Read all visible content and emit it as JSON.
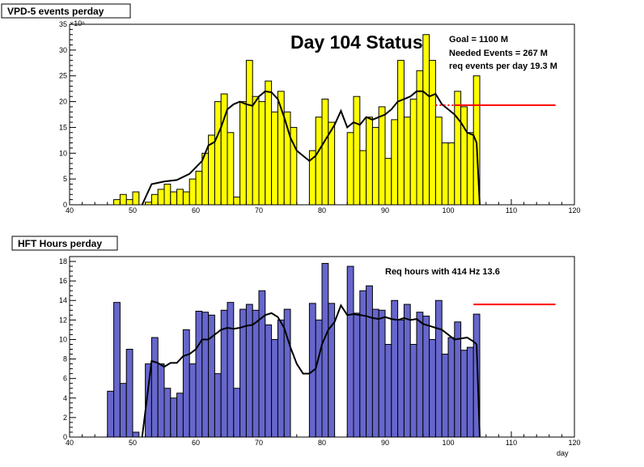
{
  "colors": {
    "top_fill": "#ffff00",
    "bottom_fill": "#6666cc",
    "bar_outline": "#000000",
    "goal_line": "#ff0000",
    "smooth_line": "#000000"
  },
  "chart_data": [
    {
      "type": "bar",
      "title": "VPD-5 events perday",
      "headline": "Day 104 Status",
      "multiplier": "×10⁶",
      "xlabel": "",
      "ylabel": "",
      "xlim": [
        40,
        120
      ],
      "ylim": [
        0,
        35
      ],
      "x_ticks": [
        40,
        50,
        60,
        70,
        80,
        90,
        100,
        110,
        120
      ],
      "y_ticks": [
        0,
        5,
        10,
        15,
        20,
        25,
        30,
        35
      ],
      "grid": false,
      "annotations": [
        "Goal =  1100 M",
        "Needed Events =   267 M",
        "req events per day 19.3 M"
      ],
      "x": [
        46,
        47,
        48,
        49,
        50,
        51,
        52,
        53,
        54,
        55,
        56,
        57,
        58,
        59,
        60,
        61,
        62,
        63,
        64,
        65,
        66,
        67,
        68,
        69,
        70,
        71,
        72,
        73,
        74,
        75,
        76,
        77,
        78,
        79,
        80,
        81,
        82,
        83,
        84,
        85,
        86,
        87,
        88,
        89,
        90,
        91,
        92,
        93,
        94,
        95,
        96,
        97,
        98,
        99,
        100,
        101,
        102,
        103,
        104,
        105
      ],
      "values": [
        0,
        1,
        2,
        1,
        2.5,
        0,
        0.5,
        2,
        3,
        4,
        2.5,
        3,
        2.5,
        5,
        6.5,
        10,
        13.5,
        20,
        21.5,
        14,
        1.5,
        20,
        28,
        21,
        20,
        24,
        18,
        22,
        18,
        15,
        0,
        0,
        10.5,
        17,
        20.5,
        16,
        0,
        0,
        14,
        21,
        10.5,
        17,
        15,
        19,
        9,
        16.5,
        28,
        17,
        20.5,
        26,
        33,
        28,
        17,
        12,
        12,
        22,
        19,
        14,
        25,
        0
      ],
      "smooth": {
        "x": [
          51.5,
          53,
          55,
          57,
          59,
          61,
          62,
          63,
          64,
          65,
          66,
          67,
          68,
          69,
          70,
          71,
          72,
          73,
          74,
          75,
          76,
          77,
          78,
          79,
          80,
          81,
          82,
          83,
          84,
          85,
          86,
          87,
          88,
          89,
          90,
          91,
          92,
          93,
          94,
          95,
          96,
          97,
          98,
          99,
          100,
          101,
          102,
          103,
          104,
          104.5,
          105
        ],
        "y": [
          0,
          4,
          4.5,
          4.8,
          6,
          8.5,
          11.5,
          12.2,
          15,
          18.5,
          19.5,
          20,
          19.5,
          19.2,
          21,
          22,
          21.8,
          20.5,
          17,
          13,
          10.5,
          9.5,
          8.5,
          9.5,
          11.5,
          13.5,
          15.5,
          18.2,
          15,
          16,
          15.5,
          17,
          16.5,
          17,
          17.5,
          18.5,
          20,
          20.5,
          21,
          22,
          22,
          21,
          21.5,
          19.5,
          18.5,
          17.5,
          16,
          14,
          13.5,
          12,
          0
        ]
      },
      "goal": {
        "x": [
          98,
          117
        ],
        "y": 19.3
      }
    },
    {
      "type": "bar",
      "title": "HFT Hours perday",
      "xlabel": "day",
      "ylabel": "",
      "xlim": [
        40,
        120
      ],
      "ylim": [
        0,
        18.5
      ],
      "x_ticks": [
        40,
        50,
        60,
        70,
        80,
        90,
        100,
        110,
        120
      ],
      "y_ticks": [
        0,
        2,
        4,
        6,
        8,
        10,
        12,
        14,
        16,
        18
      ],
      "grid": false,
      "annotations": [
        "Req hours with  414 Hz 13.6"
      ],
      "x": [
        46,
        47,
        48,
        49,
        50,
        51,
        52,
        53,
        54,
        55,
        56,
        57,
        58,
        59,
        60,
        61,
        62,
        63,
        64,
        65,
        66,
        67,
        68,
        69,
        70,
        71,
        72,
        73,
        74,
        75,
        76,
        77,
        78,
        79,
        80,
        81,
        82,
        83,
        84,
        85,
        86,
        87,
        88,
        89,
        90,
        91,
        92,
        93,
        94,
        95,
        96,
        97,
        98,
        99,
        100,
        101,
        102,
        103,
        104,
        105
      ],
      "values": [
        4.7,
        13.8,
        5.5,
        9,
        0.5,
        0,
        7.5,
        10.2,
        7.5,
        5,
        4,
        4.5,
        11,
        7.5,
        12.9,
        12.8,
        12.5,
        6.5,
        13,
        13.8,
        5,
        13.1,
        13.6,
        13,
        15,
        11.5,
        10,
        12,
        13.1,
        0,
        0,
        0,
        13.7,
        12,
        17.8,
        13.7,
        0,
        0,
        17.5,
        12.7,
        15,
        15.5,
        13.1,
        13,
        9.5,
        14,
        12,
        13.6,
        9.5,
        12.8,
        12.4,
        10,
        14,
        8.5,
        10.2,
        11.8,
        8.9,
        9.2,
        12.6,
        0
      ],
      "smooth": {
        "x": [
          51.5,
          53,
          54,
          55,
          56,
          57,
          58,
          59,
          60,
          61,
          62,
          63,
          64,
          65,
          66,
          67,
          68,
          69,
          70,
          71,
          72,
          73,
          74,
          75,
          76,
          77,
          78,
          79,
          80,
          81,
          82,
          83,
          84,
          85,
          86,
          87,
          88,
          89,
          90,
          91,
          92,
          93,
          94,
          95,
          96,
          97,
          98,
          99,
          100,
          101,
          102,
          103,
          104,
          104.5,
          105
        ],
        "y": [
          0,
          7.8,
          7.6,
          7.2,
          7.6,
          7.6,
          8.3,
          8.5,
          9,
          10,
          10,
          10.5,
          11,
          11.2,
          11.1,
          11.2,
          11.4,
          11.5,
          12,
          12.5,
          12.7,
          12.3,
          11.2,
          9.2,
          7.5,
          6.5,
          6.5,
          7,
          9.5,
          11,
          11.8,
          13.5,
          12.5,
          12.6,
          12.5,
          12.4,
          12.2,
          12.1,
          12.3,
          12.1,
          12,
          12.2,
          12,
          12.1,
          11.6,
          11.4,
          11.2,
          11,
          10.5,
          10,
          10.1,
          10.2,
          9.8,
          9.5,
          0
        ]
      },
      "goal": {
        "x": [
          104,
          117
        ],
        "y": 13.6
      }
    }
  ]
}
